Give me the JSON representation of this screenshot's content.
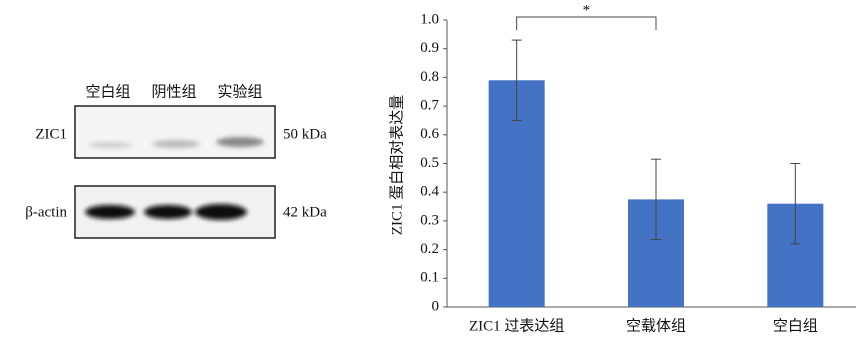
{
  "blot": {
    "lanes": [
      "空白组",
      "阴性组",
      "实验组"
    ],
    "rows": [
      {
        "label": "ZIC1",
        "size": "50 kDa"
      },
      {
        "label": "β-actin",
        "size": "42 kDa"
      }
    ]
  },
  "chart_data": {
    "type": "bar",
    "ylabel": "ZIC1 蛋白相对表达量",
    "categories": [
      "ZIC1 过表达组",
      "空载体组",
      "空白组"
    ],
    "values": [
      0.79,
      0.375,
      0.36
    ],
    "errors": [
      0.14,
      0.14,
      0.14
    ],
    "color": "#4472c4",
    "ylim": [
      0,
      1
    ],
    "yticks": [
      0,
      0.1,
      0.2,
      0.3,
      0.4,
      0.5,
      0.6,
      0.7,
      0.8,
      0.9,
      {
        "value": 1,
        "label": "1.0"
      }
    ],
    "annotations": [
      {
        "text": "*"
      }
    ]
  }
}
